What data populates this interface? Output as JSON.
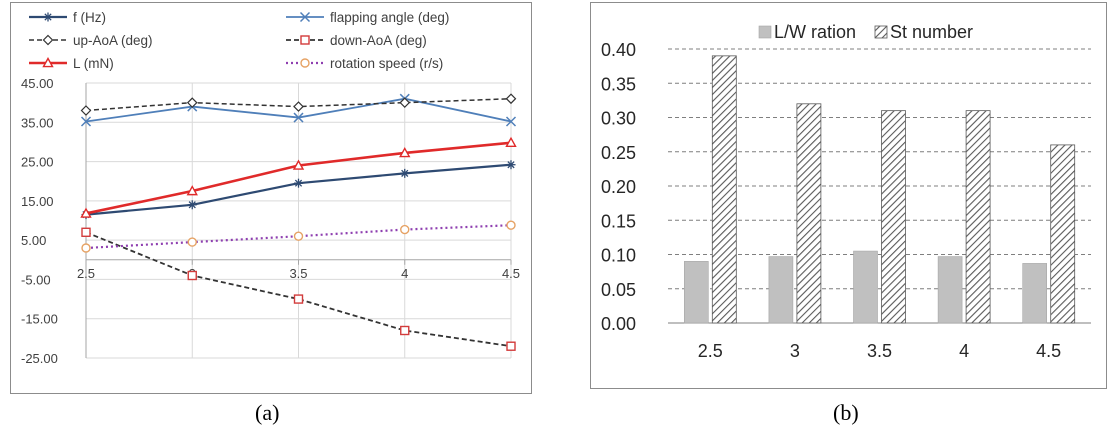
{
  "captions": {
    "a": "(a)",
    "b": "(b)"
  },
  "colors": {
    "f": "#2e4a72",
    "flapping": "#4f7fb9",
    "up_aoa": "#333333",
    "down_aoa": "#333333",
    "down_marker": "#d23b3b",
    "lift": "#e02a2a",
    "rotation": "#8e3fb0",
    "rotation_marker": "#e6a264",
    "bar_lw": "#c0c0c0",
    "bar_st": "#595959"
  },
  "chart_data": [
    {
      "type": "line",
      "panel": "(a)",
      "x": [
        "2.5",
        "3",
        "3.5",
        "4",
        "4.5"
      ],
      "ylim": [
        -25,
        45
      ],
      "yticks": [
        "45.00",
        "35.00",
        "25.00",
        "15.00",
        "5.00",
        "-5.00",
        "-15.00",
        "-25.00"
      ],
      "grid": true,
      "legend_placement": "top",
      "series": [
        {
          "name": "f (Hz)",
          "values": [
            11.5,
            14,
            19.5,
            22,
            24.2
          ],
          "marker": "asterisk",
          "style": "solid"
        },
        {
          "name": "flapping angle (deg)",
          "values": [
            35.2,
            39,
            36.2,
            41,
            35.2
          ],
          "marker": "x",
          "style": "solid"
        },
        {
          "name": "up-AoA (deg)",
          "values": [
            38,
            40,
            39,
            40,
            41
          ],
          "marker": "diamond",
          "style": "dashed"
        },
        {
          "name": "down-AoA (deg)",
          "values": [
            7,
            -4,
            -10,
            -18,
            -22
          ],
          "marker": "square",
          "style": "dashed"
        },
        {
          "name": "L (mN)",
          "values": [
            11.8,
            17.5,
            24,
            27.2,
            29.8
          ],
          "marker": "triangle",
          "style": "solid"
        },
        {
          "name": "rotation speed (r/s)",
          "values": [
            3,
            4.5,
            6,
            7.7,
            8.8
          ],
          "marker": "circle",
          "style": "dotted"
        }
      ]
    },
    {
      "type": "bar",
      "panel": "(b)",
      "categories": [
        "2.5",
        "3",
        "3.5",
        "4",
        "4.5"
      ],
      "ylim": [
        0,
        0.4
      ],
      "yticks": [
        "0.40",
        "0.35",
        "0.30",
        "0.25",
        "0.20",
        "0.15",
        "0.10",
        "0.05",
        "0.00"
      ],
      "grid": true,
      "legend_placement": "top",
      "series": [
        {
          "name": "L/W ration",
          "values": [
            0.09,
            0.097,
            0.105,
            0.097,
            0.087
          ],
          "fill": "solid"
        },
        {
          "name": "St number",
          "values": [
            0.39,
            0.32,
            0.31,
            0.31,
            0.26
          ],
          "fill": "hatched"
        }
      ]
    }
  ]
}
